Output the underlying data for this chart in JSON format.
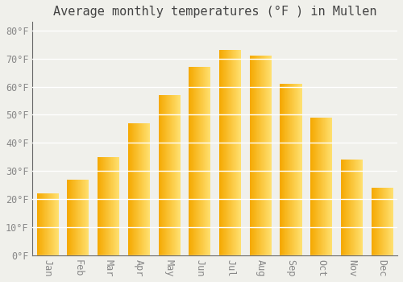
{
  "title": "Average monthly temperatures (°F ) in Mullen",
  "months": [
    "Jan",
    "Feb",
    "Mar",
    "Apr",
    "May",
    "Jun",
    "Jul",
    "Aug",
    "Sep",
    "Oct",
    "Nov",
    "Dec"
  ],
  "values": [
    22,
    27,
    35,
    47,
    57,
    67,
    73,
    71,
    61,
    49,
    34,
    24
  ],
  "bar_color_left": "#F5A800",
  "bar_color_right": "#FFE070",
  "background_color": "#F0F0EB",
  "grid_color": "#FFFFFF",
  "yticks": [
    0,
    10,
    20,
    30,
    40,
    50,
    60,
    70,
    80
  ],
  "ylim": [
    0,
    83
  ],
  "title_fontsize": 11,
  "tick_fontsize": 8.5,
  "font_family": "monospace"
}
